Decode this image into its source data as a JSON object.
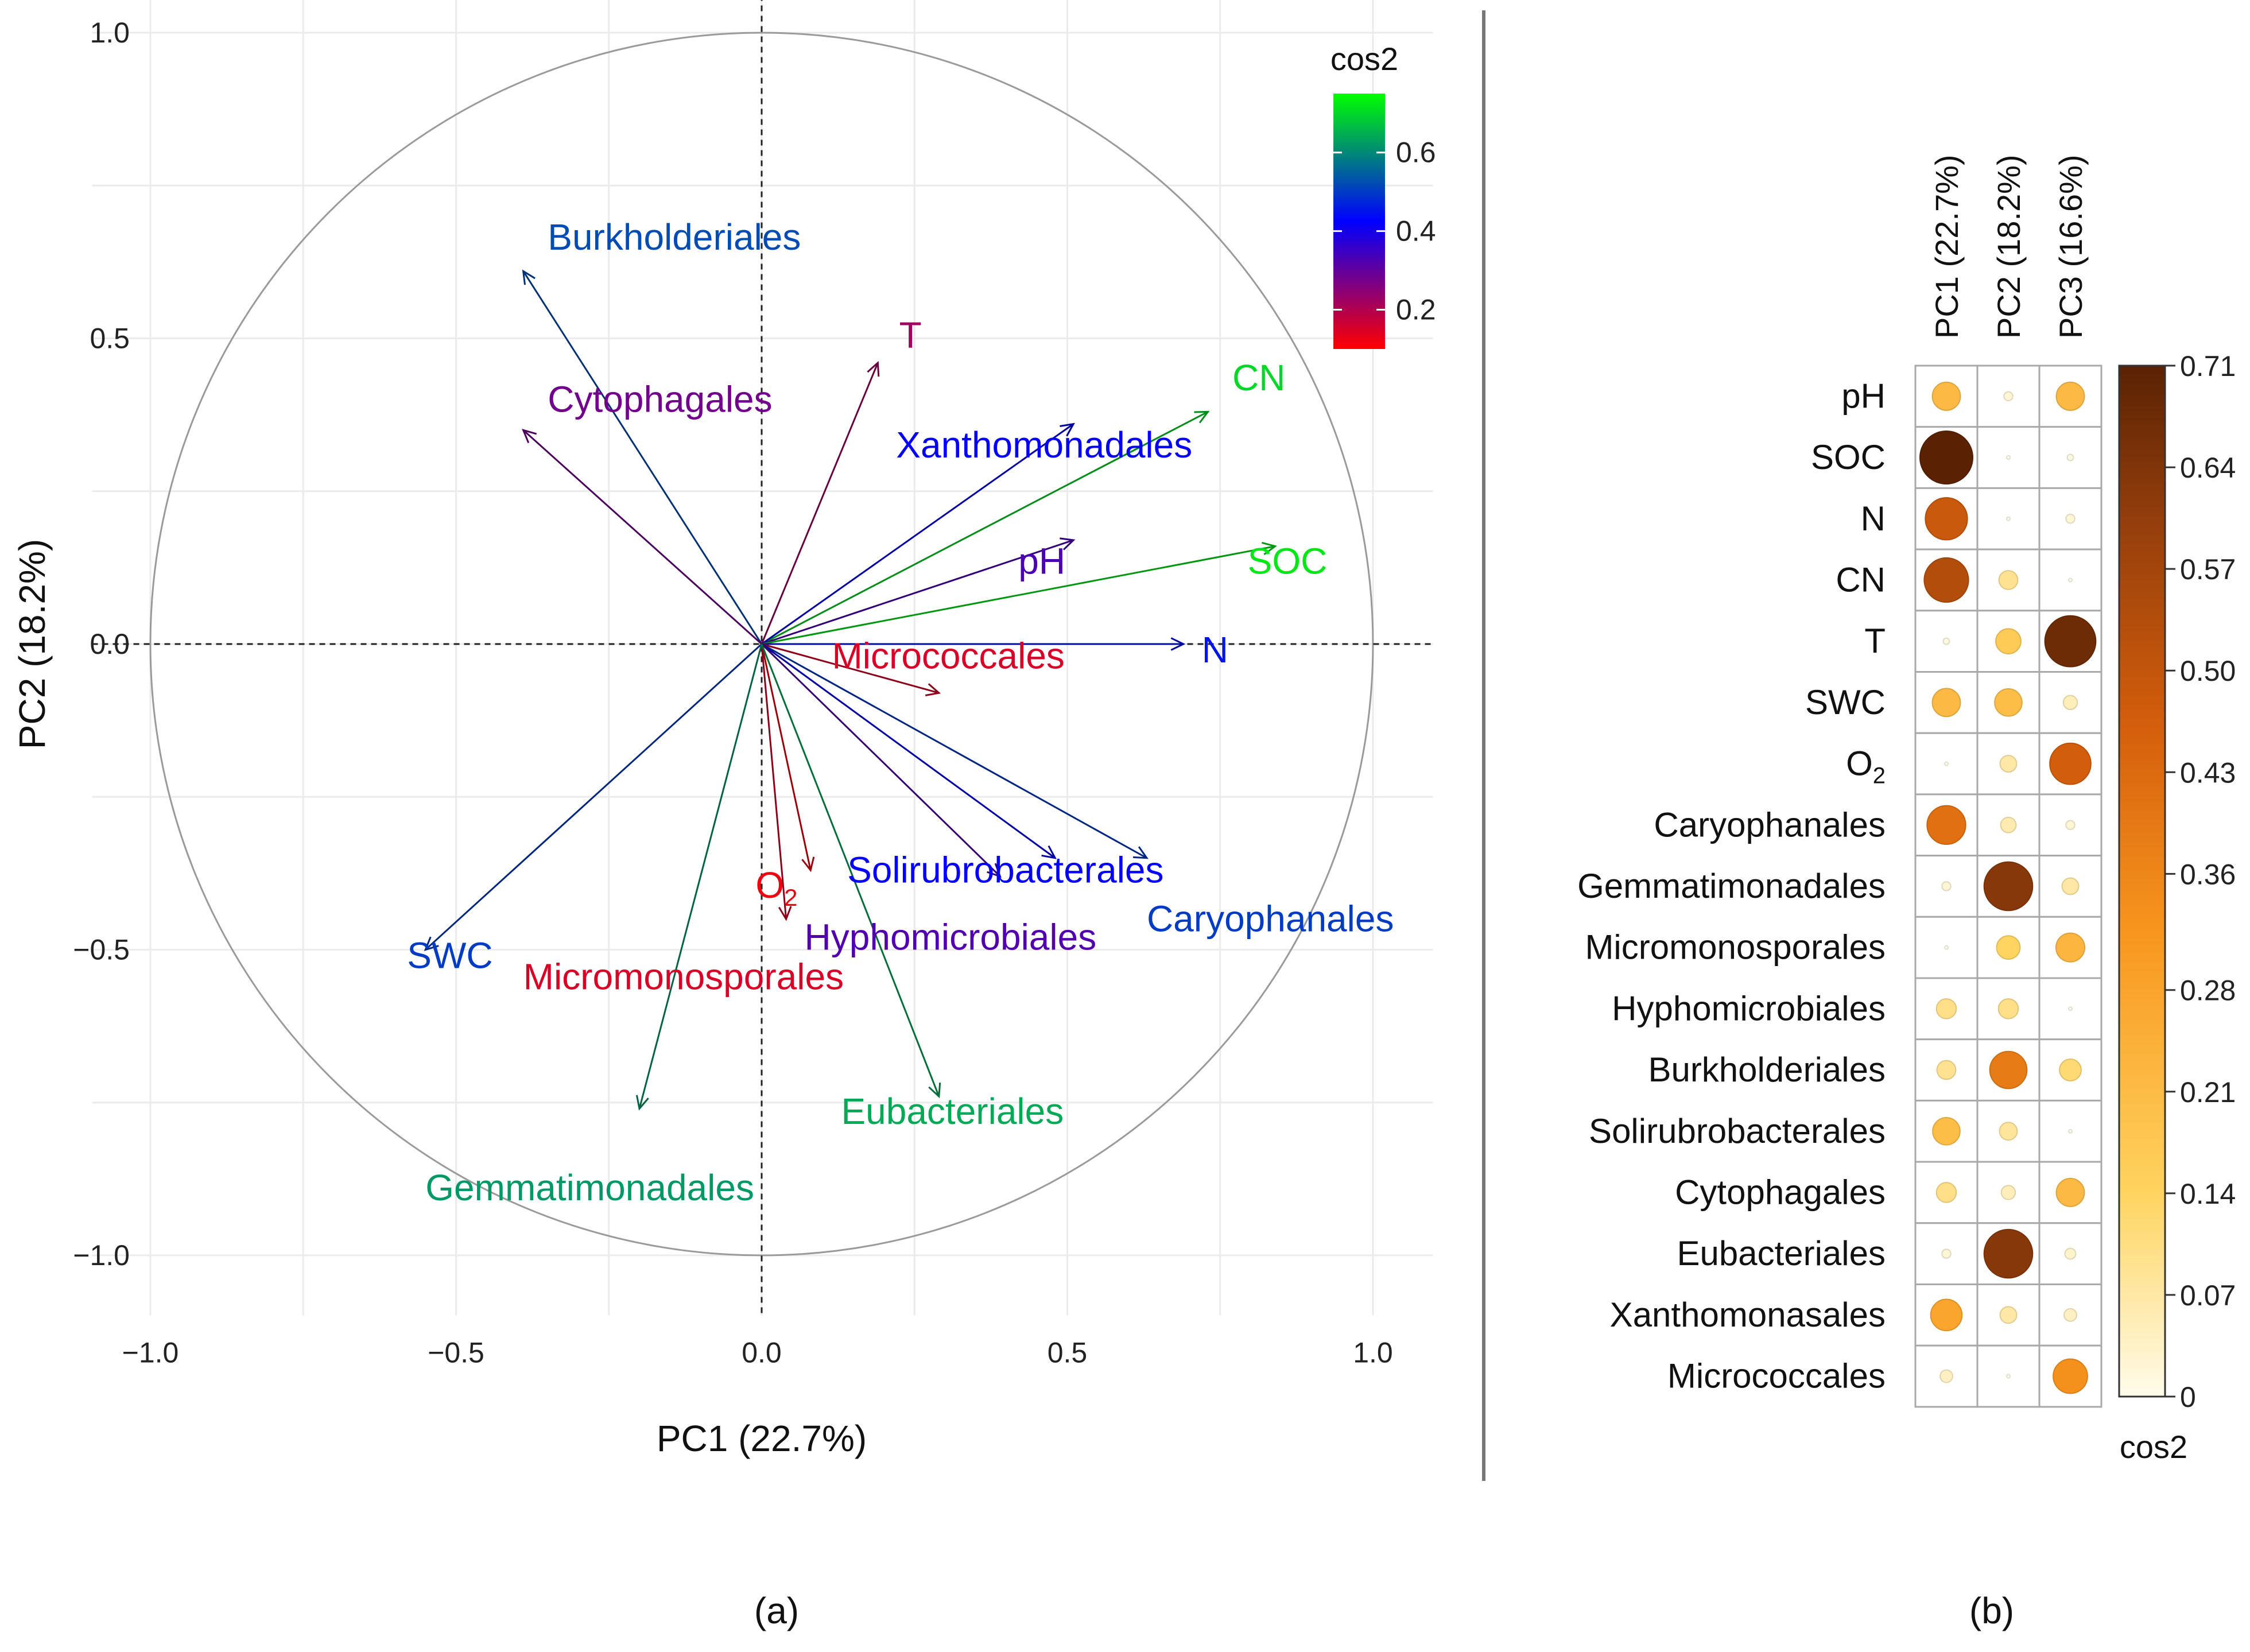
{
  "chart_data": [
    {
      "type": "scatter",
      "subtype": "pca-variable-correlation-circle",
      "panel_label": "(a)",
      "xlabel": "PC1 (22.7%)",
      "ylabel": "PC2 (18.2%)",
      "xlim": [
        -1.1,
        1.1
      ],
      "ylim": [
        -1.1,
        1.1
      ],
      "x_ticks": [
        -1.0,
        -0.5,
        0.0,
        0.5,
        1.0
      ],
      "y_ticks": [
        -1.0,
        -0.5,
        0.0,
        0.5,
        1.0
      ],
      "x_tick_labels": [
        "−1.0",
        "−0.5",
        "0.0",
        "0.5",
        "1.0"
      ],
      "y_tick_labels": [
        "−1.0",
        "−0.5",
        "0.0",
        "0.5",
        "1.0"
      ],
      "grid": true,
      "unit_circle": true,
      "legend": {
        "title": "cos2",
        "placement": "top-right",
        "range": [
          0.1,
          0.75
        ],
        "gradient_colors": [
          "#ff0000",
          "#0000ff",
          "#00ff00"
        ],
        "tick_values": [
          0.2,
          0.4,
          0.6
        ],
        "tick_labels": [
          "0.2",
          "0.4",
          "0.6"
        ]
      },
      "variables": [
        {
          "name": "Burkholderiales",
          "x": -0.39,
          "y": 0.61,
          "cos2": 0.52,
          "label": "Burkholderiales",
          "label_x": -0.35,
          "label_y": 0.645
        },
        {
          "name": "Cytophagales",
          "x": -0.39,
          "y": 0.35,
          "cos2": 0.28,
          "label": "Cytophagales",
          "label_x": -0.35,
          "label_y": 0.38
        },
        {
          "name": "T",
          "x": 0.19,
          "y": 0.46,
          "cos2": 0.22,
          "label": "T",
          "label_x": 0.225,
          "label_y": 0.485
        },
        {
          "name": "CN",
          "x": 0.73,
          "y": 0.38,
          "cos2": 0.7,
          "label": "CN",
          "label_x": 0.77,
          "label_y": 0.415
        },
        {
          "name": "Xanthomonadales",
          "x": 0.51,
          "y": 0.36,
          "cos2": 0.42,
          "label": "Xanthomonadales",
          "label_x": 0.22,
          "label_y": 0.305
        },
        {
          "name": "pH",
          "x": 0.51,
          "y": 0.17,
          "cos2": 0.33,
          "label": "pH",
          "label_x": 0.42,
          "label_y": 0.115
        },
        {
          "name": "SOC",
          "x": 0.84,
          "y": 0.16,
          "cos2": 0.72,
          "label": "SOC",
          "label_x": 0.795,
          "label_y": 0.115
        },
        {
          "name": "N",
          "x": 0.69,
          "y": 0.0,
          "cos2": 0.45,
          "label": "N",
          "label_x": 0.72,
          "label_y": -0.03
        },
        {
          "name": "Micrococcales",
          "x": 0.29,
          "y": -0.08,
          "cos2": 0.15,
          "label": "Micrococcales",
          "label_x": 0.115,
          "label_y": -0.04
        },
        {
          "name": "Caryophanales",
          "x": 0.63,
          "y": -0.35,
          "cos2": 0.5,
          "label": "Caryophanales",
          "label_x": 0.63,
          "label_y": -0.47
        },
        {
          "name": "Solirubrobacterales",
          "x": 0.48,
          "y": -0.35,
          "cos2": 0.42,
          "label": "Solirubrobacterales",
          "label_x": 0.14,
          "label_y": -0.39
        },
        {
          "name": "Hyphomicrobiales",
          "x": 0.39,
          "y": -0.38,
          "cos2": 0.32,
          "label": "Hyphomicrobiales",
          "label_x": 0.07,
          "label_y": -0.5
        },
        {
          "name": "O2",
          "x": 0.08,
          "y": -0.37,
          "cos2": 0.12,
          "label": "O",
          "label_sub": "2",
          "label_x": -0.01,
          "label_y": -0.415
        },
        {
          "name": "Micromonosporales",
          "x": 0.04,
          "y": -0.45,
          "cos2": 0.15,
          "label": "Micromonosporales",
          "label_x": -0.39,
          "label_y": -0.565
        },
        {
          "name": "SWC",
          "x": -0.55,
          "y": -0.5,
          "cos2": 0.5,
          "label": "SWC",
          "label_x": -0.58,
          "label_y": -0.53
        },
        {
          "name": "Gemmatimonadales",
          "x": -0.2,
          "y": -0.76,
          "cos2": 0.62,
          "label": "Gemmatimonadales",
          "label_x": -0.55,
          "label_y": -0.91
        },
        {
          "name": "Eubacteriales",
          "x": 0.29,
          "y": -0.74,
          "cos2": 0.64,
          "label": "Eubacteriales",
          "label_x": 0.13,
          "label_y": -0.785
        }
      ]
    },
    {
      "type": "heatmap",
      "subtype": "corrplot-circle",
      "panel_label": "(b)",
      "columns": [
        "PC1 (22.7%)",
        "PC2 (18.2%)",
        "PC3 (16.6%)"
      ],
      "rows": [
        {
          "label": "pH",
          "values": [
            0.2,
            0.02,
            0.2
          ]
        },
        {
          "label": "SOC",
          "values": [
            0.71,
            0.0,
            0.01
          ]
        },
        {
          "label": "N",
          "values": [
            0.45,
            0.0,
            0.02
          ]
        },
        {
          "label": "CN",
          "values": [
            0.5,
            0.09,
            0.0
          ]
        },
        {
          "label": "T",
          "values": [
            0.01,
            0.16,
            0.66
          ]
        },
        {
          "label": "SWC",
          "values": [
            0.2,
            0.19,
            0.05
          ]
        },
        {
          "label": "O",
          "label_sub": "2",
          "values": [
            0.0,
            0.07,
            0.43
          ]
        },
        {
          "label": "Caryophanales",
          "values": [
            0.38,
            0.06,
            0.02
          ]
        },
        {
          "label": "Gemmatimonadales",
          "values": [
            0.02,
            0.6,
            0.07
          ]
        },
        {
          "label": "Micromonosporales",
          "values": [
            0.0,
            0.14,
            0.21
          ]
        },
        {
          "label": "Hyphomicrobiales",
          "values": [
            0.1,
            0.1,
            0.0
          ]
        },
        {
          "label": "Burkholderiales",
          "values": [
            0.09,
            0.35,
            0.12
          ]
        },
        {
          "label": "Solirubrobacterales",
          "values": [
            0.19,
            0.08,
            0.0
          ]
        },
        {
          "label": "Cytophagales",
          "values": [
            0.1,
            0.05,
            0.2
          ]
        },
        {
          "label": "Eubacteriales",
          "values": [
            0.02,
            0.6,
            0.03
          ]
        },
        {
          "label": "Xanthomonasales",
          "values": [
            0.25,
            0.07,
            0.04
          ]
        },
        {
          "label": "Micrococcales",
          "values": [
            0.04,
            0.0,
            0.3
          ]
        }
      ],
      "legend": {
        "title": "cos2",
        "placement": "right",
        "range": [
          0,
          0.71
        ],
        "gradient_colors": [
          "#fffcea",
          "#ffd35e",
          "#f8961e",
          "#d45e0c",
          "#943e0c",
          "#5a2203"
        ],
        "tick_values": [
          0,
          0.07,
          0.14,
          0.21,
          0.28,
          0.36,
          0.43,
          0.5,
          0.57,
          0.64,
          0.71
        ],
        "tick_labels": [
          "0",
          "0.07",
          "0.14",
          "0.21",
          "0.28",
          "0.36",
          "0.43",
          "0.50",
          "0.57",
          "0.64",
          "0.71"
        ]
      }
    }
  ]
}
